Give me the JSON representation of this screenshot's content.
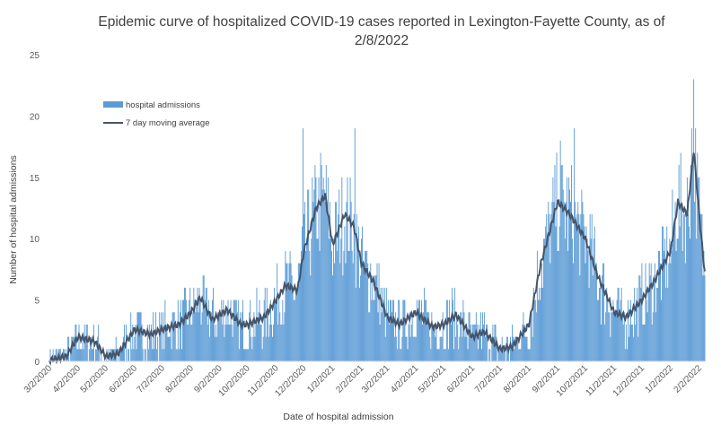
{
  "chart_data": {
    "type": "bar",
    "title": "Epidemic curve of hospitalized COVID-19 cases reported in Lexington-Fayette County, as of 2/8/2022",
    "title_lines": [
      "Epidemic curve of hospitalized COVID-19 cases reported in Lexington-Fayette County, as of",
      "2/8/2022"
    ],
    "xlabel": "Date of hospital admission",
    "ylabel": "Number of hospital admissions",
    "ylim": [
      0,
      25
    ],
    "yticks": [
      "0",
      "5",
      "10",
      "15",
      "20",
      "25"
    ],
    "xticks": [
      "3/2/2020",
      "4/2/2020",
      "5/2/2020",
      "6/2/2020",
      "7/2/2020",
      "8/2/2020",
      "9/2/2020",
      "10/2/2020",
      "11/2/2020",
      "12/2/2020",
      "1/2/2021",
      "2/2/2021",
      "3/2/2021",
      "4/2/2021",
      "5/2/2021",
      "6/2/2021",
      "7/2/2021",
      "8/2/2021",
      "9/2/2021",
      "10/2/2021",
      "11/2/2021",
      "12/2/2021",
      "1/2/2022",
      "2/2/2022"
    ],
    "x_start": "3/2/2020",
    "x_end": "2/8/2022",
    "grid": false,
    "legend_position": "top-left",
    "series": [
      {
        "name": "hospital admissions",
        "type": "bar",
        "color": "#5b9bd5"
      },
      {
        "name": "7 day moving average",
        "type": "line",
        "color": "#44546a"
      }
    ],
    "moving_average_key_points": [
      [
        "3/2/2020",
        0.1
      ],
      [
        "3/20/2020",
        0.4
      ],
      [
        "4/2/2020",
        2.0
      ],
      [
        "4/20/2020",
        1.6
      ],
      [
        "5/2/2020",
        0.4
      ],
      [
        "5/15/2020",
        0.6
      ],
      [
        "6/2/2020",
        2.6
      ],
      [
        "6/20/2020",
        2.2
      ],
      [
        "7/2/2020",
        2.6
      ],
      [
        "7/20/2020",
        3.0
      ],
      [
        "8/2/2020",
        4.0
      ],
      [
        "8/12/2020",
        5.2
      ],
      [
        "8/25/2020",
        3.4
      ],
      [
        "9/10/2020",
        4.2
      ],
      [
        "9/25/2020",
        3.0
      ],
      [
        "10/2/2020",
        3.0
      ],
      [
        "10/20/2020",
        3.6
      ],
      [
        "11/2/2020",
        5.0
      ],
      [
        "11/12/2020",
        6.2
      ],
      [
        "11/25/2020",
        5.8
      ],
      [
        "12/2/2020",
        9.0
      ],
      [
        "12/15/2020",
        12.5
      ],
      [
        "12/25/2020",
        13.5
      ],
      [
        "1/2/2021",
        9.5
      ],
      [
        "1/15/2021",
        12.0
      ],
      [
        "1/25/2021",
        11.0
      ],
      [
        "2/2/2021",
        8.0
      ],
      [
        "2/15/2021",
        6.5
      ],
      [
        "3/2/2021",
        3.6
      ],
      [
        "3/15/2021",
        3.0
      ],
      [
        "4/2/2021",
        4.0
      ],
      [
        "4/20/2021",
        2.8
      ],
      [
        "5/2/2021",
        3.0
      ],
      [
        "5/15/2021",
        3.8
      ],
      [
        "6/2/2021",
        2.0
      ],
      [
        "6/15/2021",
        2.4
      ],
      [
        "7/2/2021",
        1.0
      ],
      [
        "7/15/2021",
        1.2
      ],
      [
        "8/2/2021",
        3.0
      ],
      [
        "8/15/2021",
        8.0
      ],
      [
        "9/2/2021",
        13.0
      ],
      [
        "9/15/2021",
        12.0
      ],
      [
        "10/2/2021",
        10.0
      ],
      [
        "10/15/2021",
        7.0
      ],
      [
        "11/2/2021",
        4.0
      ],
      [
        "11/15/2021",
        3.6
      ],
      [
        "12/2/2021",
        5.0
      ],
      [
        "12/15/2021",
        6.5
      ],
      [
        "1/2/2022",
        9.0
      ],
      [
        "1/10/2022",
        13.0
      ],
      [
        "1/20/2022",
        12.0
      ],
      [
        "1/27/2022",
        17.2
      ],
      [
        "2/3/2022",
        11.0
      ],
      [
        "2/8/2022",
        7.2
      ]
    ],
    "bar_peaks": [
      [
        "12/1/2020",
        19
      ],
      [
        "1/26/2021",
        19
      ],
      [
        "9/5/2021",
        18
      ],
      [
        "9/20/2021",
        19
      ],
      [
        "1/27/2022",
        23
      ],
      [
        "1/25/2022",
        19
      ]
    ]
  }
}
